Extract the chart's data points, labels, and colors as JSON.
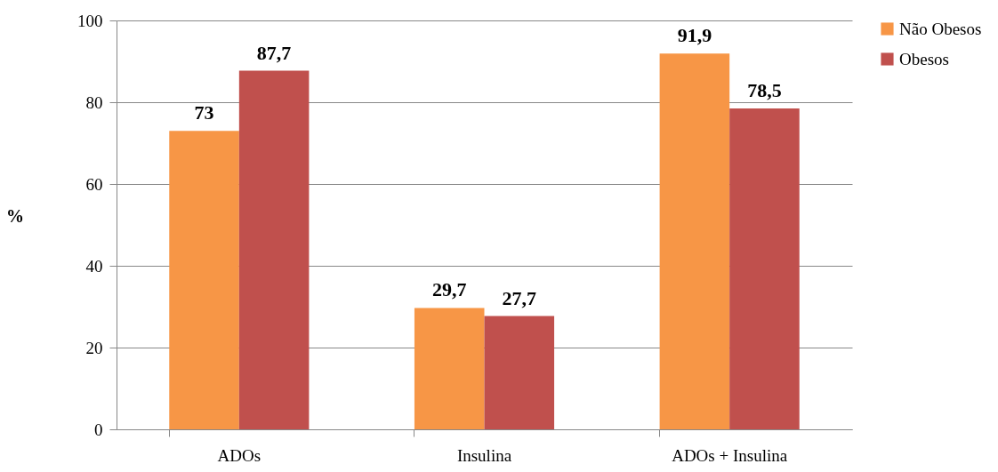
{
  "chart_data": {
    "type": "bar",
    "ylabel": "%",
    "categories": [
      "ADOs",
      "Insulina",
      "ADOs + Insulina"
    ],
    "series": [
      {
        "name": "Não Obesos",
        "color": "#f79646",
        "values": [
          73,
          29.7,
          91.9
        ],
        "value_labels": [
          "73",
          "29,7",
          "91,9"
        ]
      },
      {
        "name": "Obesos",
        "color": "#c0504d",
        "values": [
          87.7,
          27.7,
          78.5
        ],
        "value_labels": [
          "87,7",
          "27,7",
          "78,5"
        ]
      }
    ],
    "ylim": [
      0,
      100
    ],
    "yticks": [
      0,
      20,
      40,
      60,
      80,
      100
    ],
    "grid": "y",
    "legend": "right"
  }
}
